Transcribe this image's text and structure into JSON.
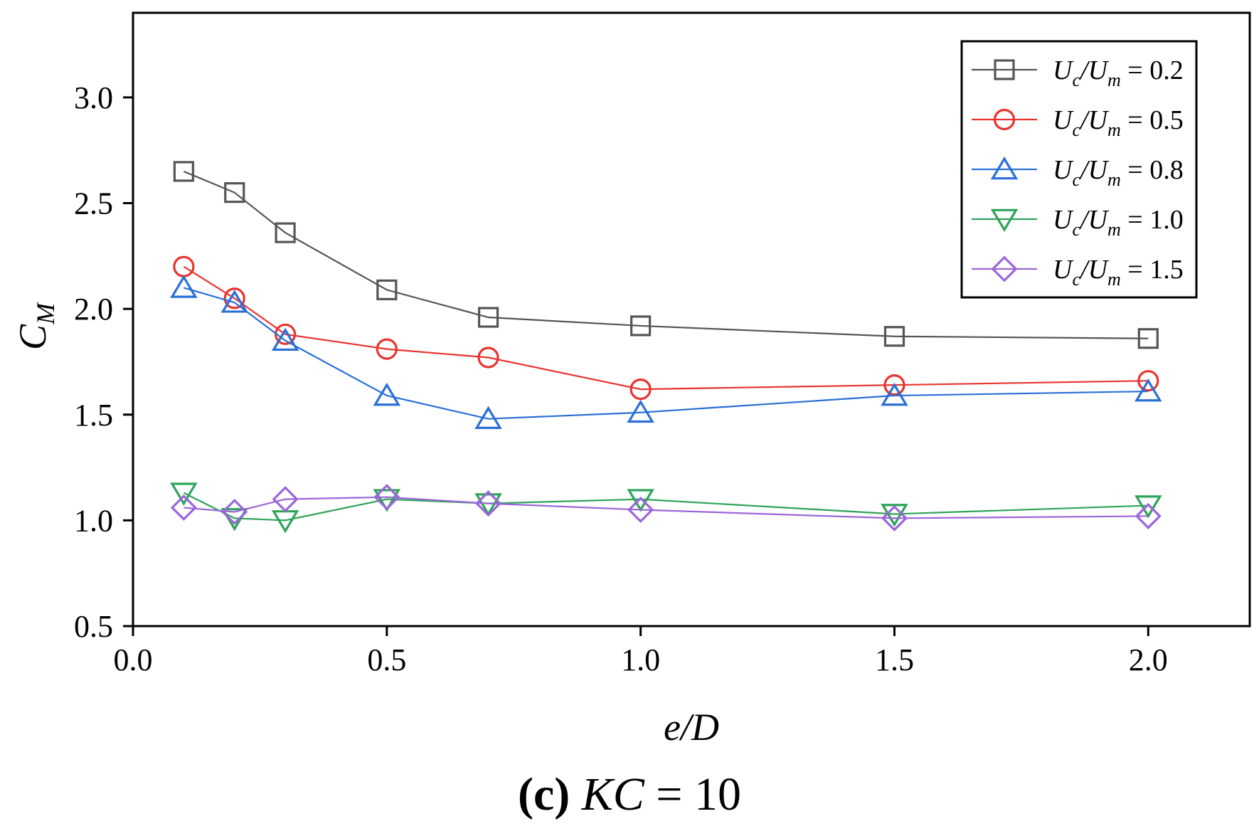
{
  "chart_data": {
    "type": "line",
    "title": "",
    "xlabel": "e/D",
    "ylabel": {
      "main": "C",
      "sub": "M"
    },
    "xlim": [
      0.0,
      2.2
    ],
    "ylim": [
      0.5,
      3.4
    ],
    "xticks": [
      "0.0",
      "0.5",
      "1.0",
      "1.5",
      "2.0"
    ],
    "yticks": [
      "0.5",
      "1.0",
      "1.5",
      "2.0",
      "2.5",
      "3.0"
    ],
    "grid": false,
    "legend_position": "top-right",
    "x": [
      0.1,
      0.2,
      0.3,
      0.5,
      0.7,
      1.0,
      1.5,
      2.0
    ],
    "series": [
      {
        "name": "Uc/Um = 0.2",
        "var_u": "U",
        "var_c": "c",
        "var_m": "m",
        "value": "0.2",
        "marker": "square",
        "color": "#555555",
        "values": [
          2.65,
          2.55,
          2.36,
          2.09,
          1.96,
          1.92,
          1.87,
          1.86
        ]
      },
      {
        "name": "Uc/Um = 0.5",
        "var_u": "U",
        "var_c": "c",
        "var_m": "m",
        "value": "0.5",
        "marker": "circle",
        "color": "#e8332f",
        "values": [
          2.2,
          2.05,
          1.88,
          1.81,
          1.77,
          1.62,
          1.64,
          1.66
        ]
      },
      {
        "name": "Uc/Um = 0.8",
        "var_u": "U",
        "var_c": "c",
        "var_m": "m",
        "value": "0.8",
        "marker": "triangle-up",
        "color": "#2a6fd6",
        "values": [
          2.1,
          2.03,
          1.85,
          1.59,
          1.48,
          1.51,
          1.59,
          1.61
        ]
      },
      {
        "name": "Uc/Um = 1.0",
        "var_u": "U",
        "var_c": "c",
        "var_m": "m",
        "value": "1.0",
        "marker": "triangle-down",
        "color": "#2ea35a",
        "values": [
          1.13,
          1.01,
          1.0,
          1.1,
          1.08,
          1.1,
          1.03,
          1.07
        ]
      },
      {
        "name": "Uc/Um = 1.5",
        "var_u": "U",
        "var_c": "c",
        "var_m": "m",
        "value": "1.5",
        "marker": "diamond",
        "color": "#9b66d9",
        "values": [
          1.06,
          1.04,
          1.1,
          1.11,
          1.08,
          1.05,
          1.01,
          1.02
        ]
      }
    ]
  },
  "caption": {
    "label": "(c)",
    "kc_label": "KC",
    "eq": "=",
    "kc_value": "10"
  }
}
